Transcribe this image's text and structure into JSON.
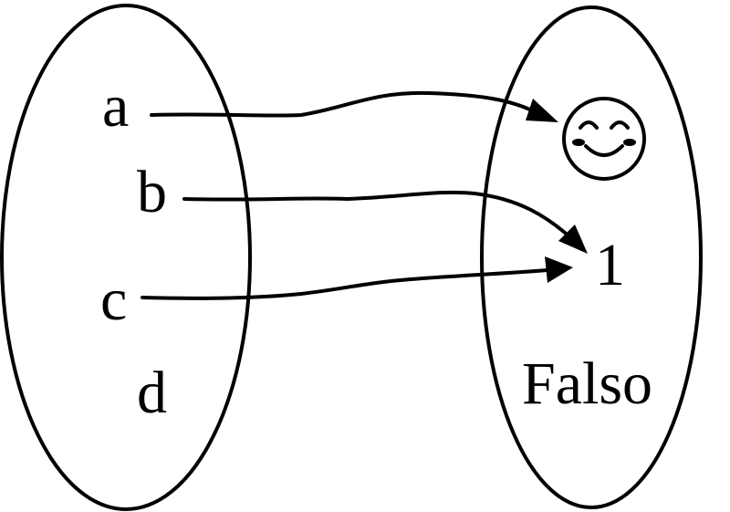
{
  "domain_left": {
    "elements": [
      "a",
      "b",
      "c",
      "d"
    ]
  },
  "codomain_right": {
    "elements": [
      "1",
      "Falso"
    ],
    "icon": "smiling-face-icon"
  },
  "mapping": [
    {
      "from": "a",
      "to": "smiling-face-icon"
    },
    {
      "from": "b",
      "to": "1"
    },
    {
      "from": "c",
      "to": "1"
    }
  ],
  "colors": {
    "stroke": "#000000",
    "background": "#ffffff"
  }
}
